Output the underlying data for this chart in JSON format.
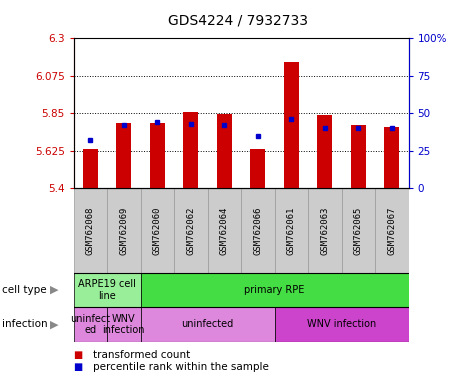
{
  "title": "GDS4224 / 7932733",
  "samples": [
    "GSM762068",
    "GSM762069",
    "GSM762060",
    "GSM762062",
    "GSM762064",
    "GSM762066",
    "GSM762061",
    "GSM762063",
    "GSM762065",
    "GSM762067"
  ],
  "transformed_counts": [
    5.635,
    5.79,
    5.79,
    5.855,
    5.845,
    5.635,
    6.16,
    5.84,
    5.78,
    5.77
  ],
  "percentile_ranks": [
    32,
    42,
    44,
    43,
    42,
    35,
    46,
    40,
    40,
    40
  ],
  "y_min": 5.4,
  "y_max": 6.3,
  "y_ticks": [
    5.4,
    5.625,
    5.85,
    6.075,
    6.3
  ],
  "y_tick_labels": [
    "5.4",
    "5.625",
    "5.85",
    "6.075",
    "6.3"
  ],
  "y2_ticks": [
    0,
    25,
    50,
    75,
    100
  ],
  "y2_tick_labels": [
    "0",
    "25",
    "50",
    "75",
    "100%"
  ],
  "bar_color": "#cc0000",
  "dot_color": "#0000cc",
  "cell_types": [
    {
      "label": "ARPE19 cell\nline",
      "start": 0,
      "end": 2,
      "color": "#99ee99"
    },
    {
      "label": "primary RPE",
      "start": 2,
      "end": 10,
      "color": "#44dd44"
    }
  ],
  "infection_types": [
    {
      "label": "uninfect\ned",
      "start": 0,
      "end": 1,
      "color": "#dd88dd"
    },
    {
      "label": "WNV\ninfection",
      "start": 1,
      "end": 2,
      "color": "#dd88dd"
    },
    {
      "label": "uninfected",
      "start": 2,
      "end": 6,
      "color": "#dd88dd"
    },
    {
      "label": "WNV infection",
      "start": 6,
      "end": 10,
      "color": "#cc44cc"
    }
  ],
  "legend_items": [
    {
      "color": "#cc0000",
      "label": "transformed count"
    },
    {
      "color": "#0000cc",
      "label": "percentile rank within the sample"
    }
  ],
  "left_labels": [
    "cell type",
    "infection"
  ],
  "arrow_color": "#888888",
  "xlabel_color": "#cc0000",
  "y2label_color": "#0000cc",
  "label_area_color": "#cccccc",
  "label_area_edge": "#999999"
}
